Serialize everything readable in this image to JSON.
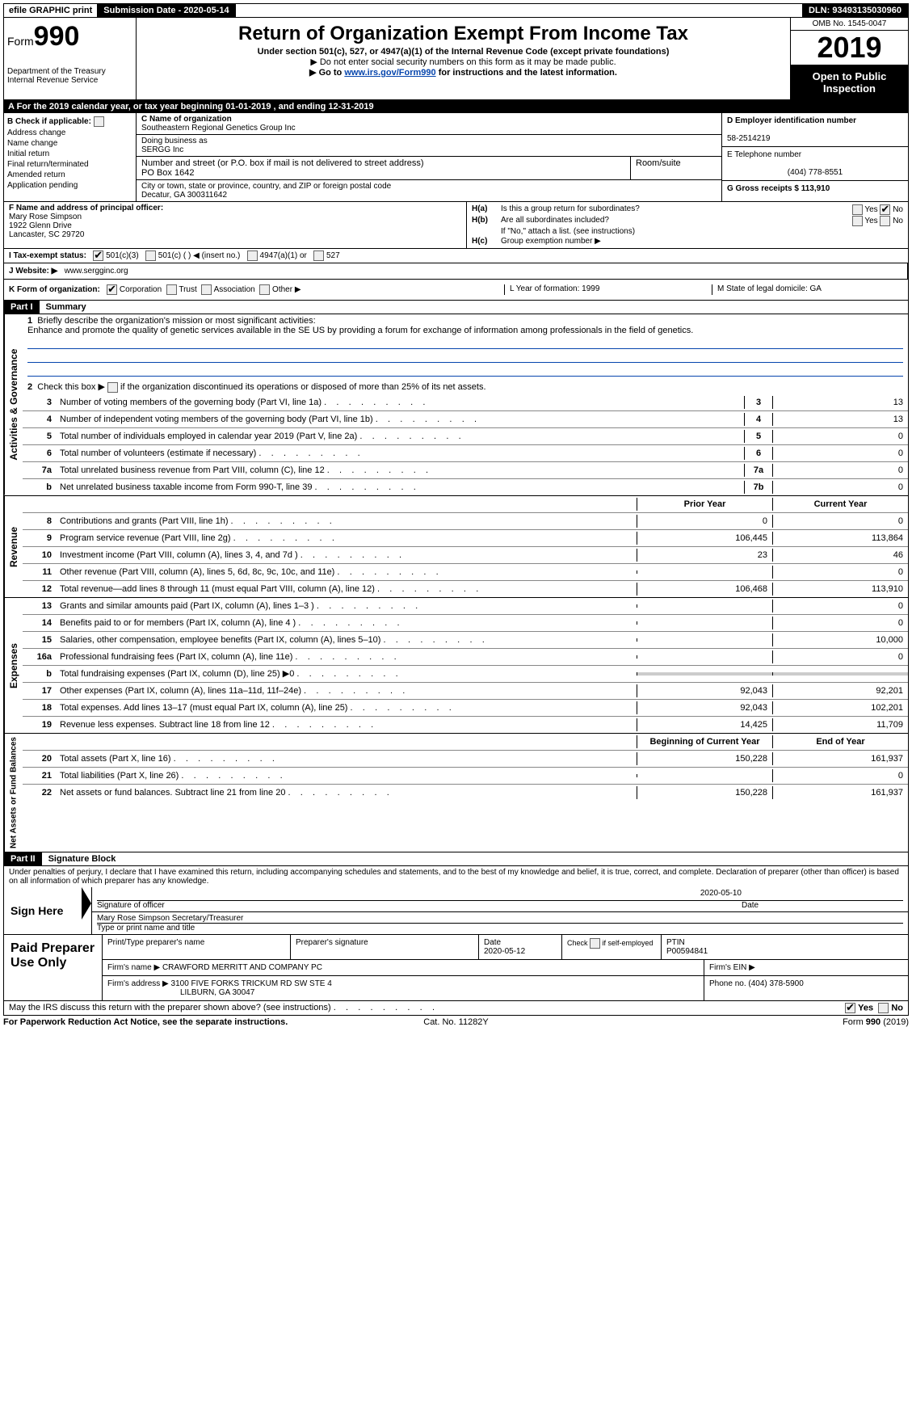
{
  "topbar": {
    "efile": "efile GRAPHIC print",
    "submission": "Submission Date - 2020-05-14",
    "dln": "DLN: 93493135030960"
  },
  "header": {
    "form_prefix": "Form",
    "form_number": "990",
    "dept": "Department of the Treasury\nInternal Revenue Service",
    "title": "Return of Organization Exempt From Income Tax",
    "sub1": "Under section 501(c), 527, or 4947(a)(1) of the Internal Revenue Code (except private foundations)",
    "sub2": "▶ Do not enter social security numbers on this form as it may be made public.",
    "sub3_prefix": "▶ Go to ",
    "sub3_link": "www.irs.gov/Form990",
    "sub3_suffix": " for instructions and the latest information.",
    "omb": "OMB No. 1545-0047",
    "year": "2019",
    "open": "Open to Public Inspection"
  },
  "rowA": "A    For the 2019 calendar year, or tax year beginning 01-01-2019       , and ending 12-31-2019",
  "colB": {
    "header": "B Check if applicable:",
    "items": [
      "Address change",
      "Name change",
      "Initial return",
      "Final return/terminated",
      "Amended return",
      "Application pending"
    ]
  },
  "colC": {
    "name_label": "C Name of organization",
    "name": "Southeastern Regional Genetics Group Inc",
    "dba_label": "Doing business as",
    "dba": "SERGG Inc",
    "addr_label": "Number and street (or P.O. box if mail is not delivered to street address)",
    "addr": "PO Box 1642",
    "room_label": "Room/suite",
    "city_label": "City or town, state or province, country, and ZIP or foreign postal code",
    "city": "Decatur, GA  300311642"
  },
  "colDE": {
    "d_label": "D Employer identification number",
    "d_val": "58-2514219",
    "e_label": "E Telephone number",
    "e_val": "(404) 778-8551",
    "g_label": "G Gross receipts $ 113,910"
  },
  "colF": {
    "label": "F  Name and address of principal officer:",
    "name": "Mary Rose Simpson",
    "addr1": "1922 Glenn Drive",
    "addr2": "Lancaster, SC  29720"
  },
  "colH": {
    "ha_label": "H(a)",
    "ha_text": "Is this a group return for subordinates?",
    "hb_label": "H(b)",
    "hb_text": "Are all subordinates included?",
    "hb_note": "If \"No,\" attach a list. (see instructions)",
    "hc_label": "H(c)",
    "hc_text": "Group exemption number ▶",
    "yes": "Yes",
    "no": "No"
  },
  "rowI": {
    "label": "I      Tax-exempt status:",
    "opt1": "501(c)(3)",
    "opt2": "501(c) (   ) ◀ (insert no.)",
    "opt3": "4947(a)(1) or",
    "opt4": "527"
  },
  "rowJ": {
    "label": "J    Website: ▶",
    "val": "www.sergginc.org"
  },
  "rowJK_right": {
    "l_label": "L Year of formation: 1999",
    "m_label": "M State of legal domicile: GA"
  },
  "rowK": {
    "label": "K Form of organization:",
    "opt1": "Corporation",
    "opt2": "Trust",
    "opt3": "Association",
    "opt4": "Other ▶"
  },
  "part1": {
    "header": "Part I",
    "title": "Summary"
  },
  "summary": {
    "line1_label": "1",
    "line1_text": "Briefly describe the organization's mission or most significant activities:",
    "mission": "Enhance and promote the quality of genetic services available in the SE US by providing a forum for exchange of information among professionals in the field of genetics.",
    "line2_label": "2",
    "line2_text": "Check this box ▶        if the organization discontinued its operations or disposed of more than 25% of its net assets.",
    "lines_governance": [
      {
        "num": "3",
        "text": "Number of voting members of the governing body (Part VI, line 1a)",
        "box": "3",
        "val": "13"
      },
      {
        "num": "4",
        "text": "Number of independent voting members of the governing body (Part VI, line 1b)",
        "box": "4",
        "val": "13"
      },
      {
        "num": "5",
        "text": "Total number of individuals employed in calendar year 2019 (Part V, line 2a)",
        "box": "5",
        "val": "0"
      },
      {
        "num": "6",
        "text": "Total number of volunteers (estimate if necessary)",
        "box": "6",
        "val": "0"
      },
      {
        "num": "7a",
        "text": "Total unrelated business revenue from Part VIII, column (C), line 12",
        "box": "7a",
        "val": "0"
      },
      {
        "num": "b",
        "text": "Net unrelated business taxable income from Form 990-T, line 39",
        "box": "7b",
        "val": "0"
      }
    ],
    "col_prior": "Prior Year",
    "col_current": "Current Year",
    "revenue": [
      {
        "num": "8",
        "text": "Contributions and grants (Part VIII, line 1h)",
        "prior": "0",
        "current": "0"
      },
      {
        "num": "9",
        "text": "Program service revenue (Part VIII, line 2g)",
        "prior": "106,445",
        "current": "113,864"
      },
      {
        "num": "10",
        "text": "Investment income (Part VIII, column (A), lines 3, 4, and 7d )",
        "prior": "23",
        "current": "46"
      },
      {
        "num": "11",
        "text": "Other revenue (Part VIII, column (A), lines 5, 6d, 8c, 9c, 10c, and 11e)",
        "prior": "",
        "current": "0"
      },
      {
        "num": "12",
        "text": "Total revenue—add lines 8 through 11 (must equal Part VIII, column (A), line 12)",
        "prior": "106,468",
        "current": "113,910"
      }
    ],
    "expenses": [
      {
        "num": "13",
        "text": "Grants and similar amounts paid (Part IX, column (A), lines 1–3 )",
        "prior": "",
        "current": "0"
      },
      {
        "num": "14",
        "text": "Benefits paid to or for members (Part IX, column (A), line 4 )",
        "prior": "",
        "current": "0"
      },
      {
        "num": "15",
        "text": "Salaries, other compensation, employee benefits (Part IX, column (A), lines 5–10)",
        "prior": "",
        "current": "10,000"
      },
      {
        "num": "16a",
        "text": "Professional fundraising fees (Part IX, column (A), line 11e)",
        "prior": "",
        "current": "0"
      },
      {
        "num": "b",
        "text": "Total fundraising expenses (Part IX, column (D), line 25) ▶0",
        "prior": "shaded",
        "current": "shaded"
      },
      {
        "num": "17",
        "text": "Other expenses (Part IX, column (A), lines 11a–11d, 11f–24e)",
        "prior": "92,043",
        "current": "92,201"
      },
      {
        "num": "18",
        "text": "Total expenses. Add lines 13–17 (must equal Part IX, column (A), line 25)",
        "prior": "92,043",
        "current": "102,201"
      },
      {
        "num": "19",
        "text": "Revenue less expenses. Subtract line 18 from line 12",
        "prior": "14,425",
        "current": "11,709"
      }
    ],
    "col_begin": "Beginning of Current Year",
    "col_end": "End of Year",
    "netassets": [
      {
        "num": "20",
        "text": "Total assets (Part X, line 16)",
        "prior": "150,228",
        "current": "161,937"
      },
      {
        "num": "21",
        "text": "Total liabilities (Part X, line 26)",
        "prior": "",
        "current": "0"
      },
      {
        "num": "22",
        "text": "Net assets or fund balances. Subtract line 21 from line 20",
        "prior": "150,228",
        "current": "161,937"
      }
    ]
  },
  "sidelabels": {
    "gov": "Activities & Governance",
    "rev": "Revenue",
    "exp": "Expenses",
    "net": "Net Assets or\nFund Balances"
  },
  "part2": {
    "header": "Part II",
    "title": "Signature Block"
  },
  "sig": {
    "penalty": "Under penalties of perjury, I declare that I have examined this return, including accompanying schedules and statements, and to the best of my knowledge and belief, it is true, correct, and complete. Declaration of preparer (other than officer) is based on all information of which preparer has any knowledge.",
    "sign_here": "Sign Here",
    "date": "2020-05-10",
    "sig_label": "Signature of officer",
    "date_label": "Date",
    "name": "Mary Rose Simpson  Secretary/Treasurer",
    "name_label": "Type or print name and title"
  },
  "prep": {
    "label": "Paid Preparer Use Only",
    "h1": "Print/Type preparer's name",
    "h2": "Preparer's signature",
    "h3": "Date",
    "date": "2020-05-12",
    "h4": "Check         if self-employed",
    "h5": "PTIN",
    "ptin": "P00594841",
    "firm_label": "Firm's name    ▶",
    "firm": "CRAWFORD MERRITT AND COMPANY PC",
    "ein_label": "Firm's EIN ▶",
    "addr_label": "Firm's address ▶",
    "addr1": "3100 FIVE FORKS TRICKUM RD SW STE 4",
    "addr2": "LILBURN, GA  30047",
    "phone_label": "Phone no. (404) 378-5900"
  },
  "discuss": {
    "text": "May the IRS discuss this return with the preparer shown above? (see instructions)",
    "yes": "Yes",
    "no": "No"
  },
  "footer": {
    "left": "For Paperwork Reduction Act Notice, see the separate instructions.",
    "center": "Cat. No. 11282Y",
    "right": "Form 990 (2019)"
  }
}
